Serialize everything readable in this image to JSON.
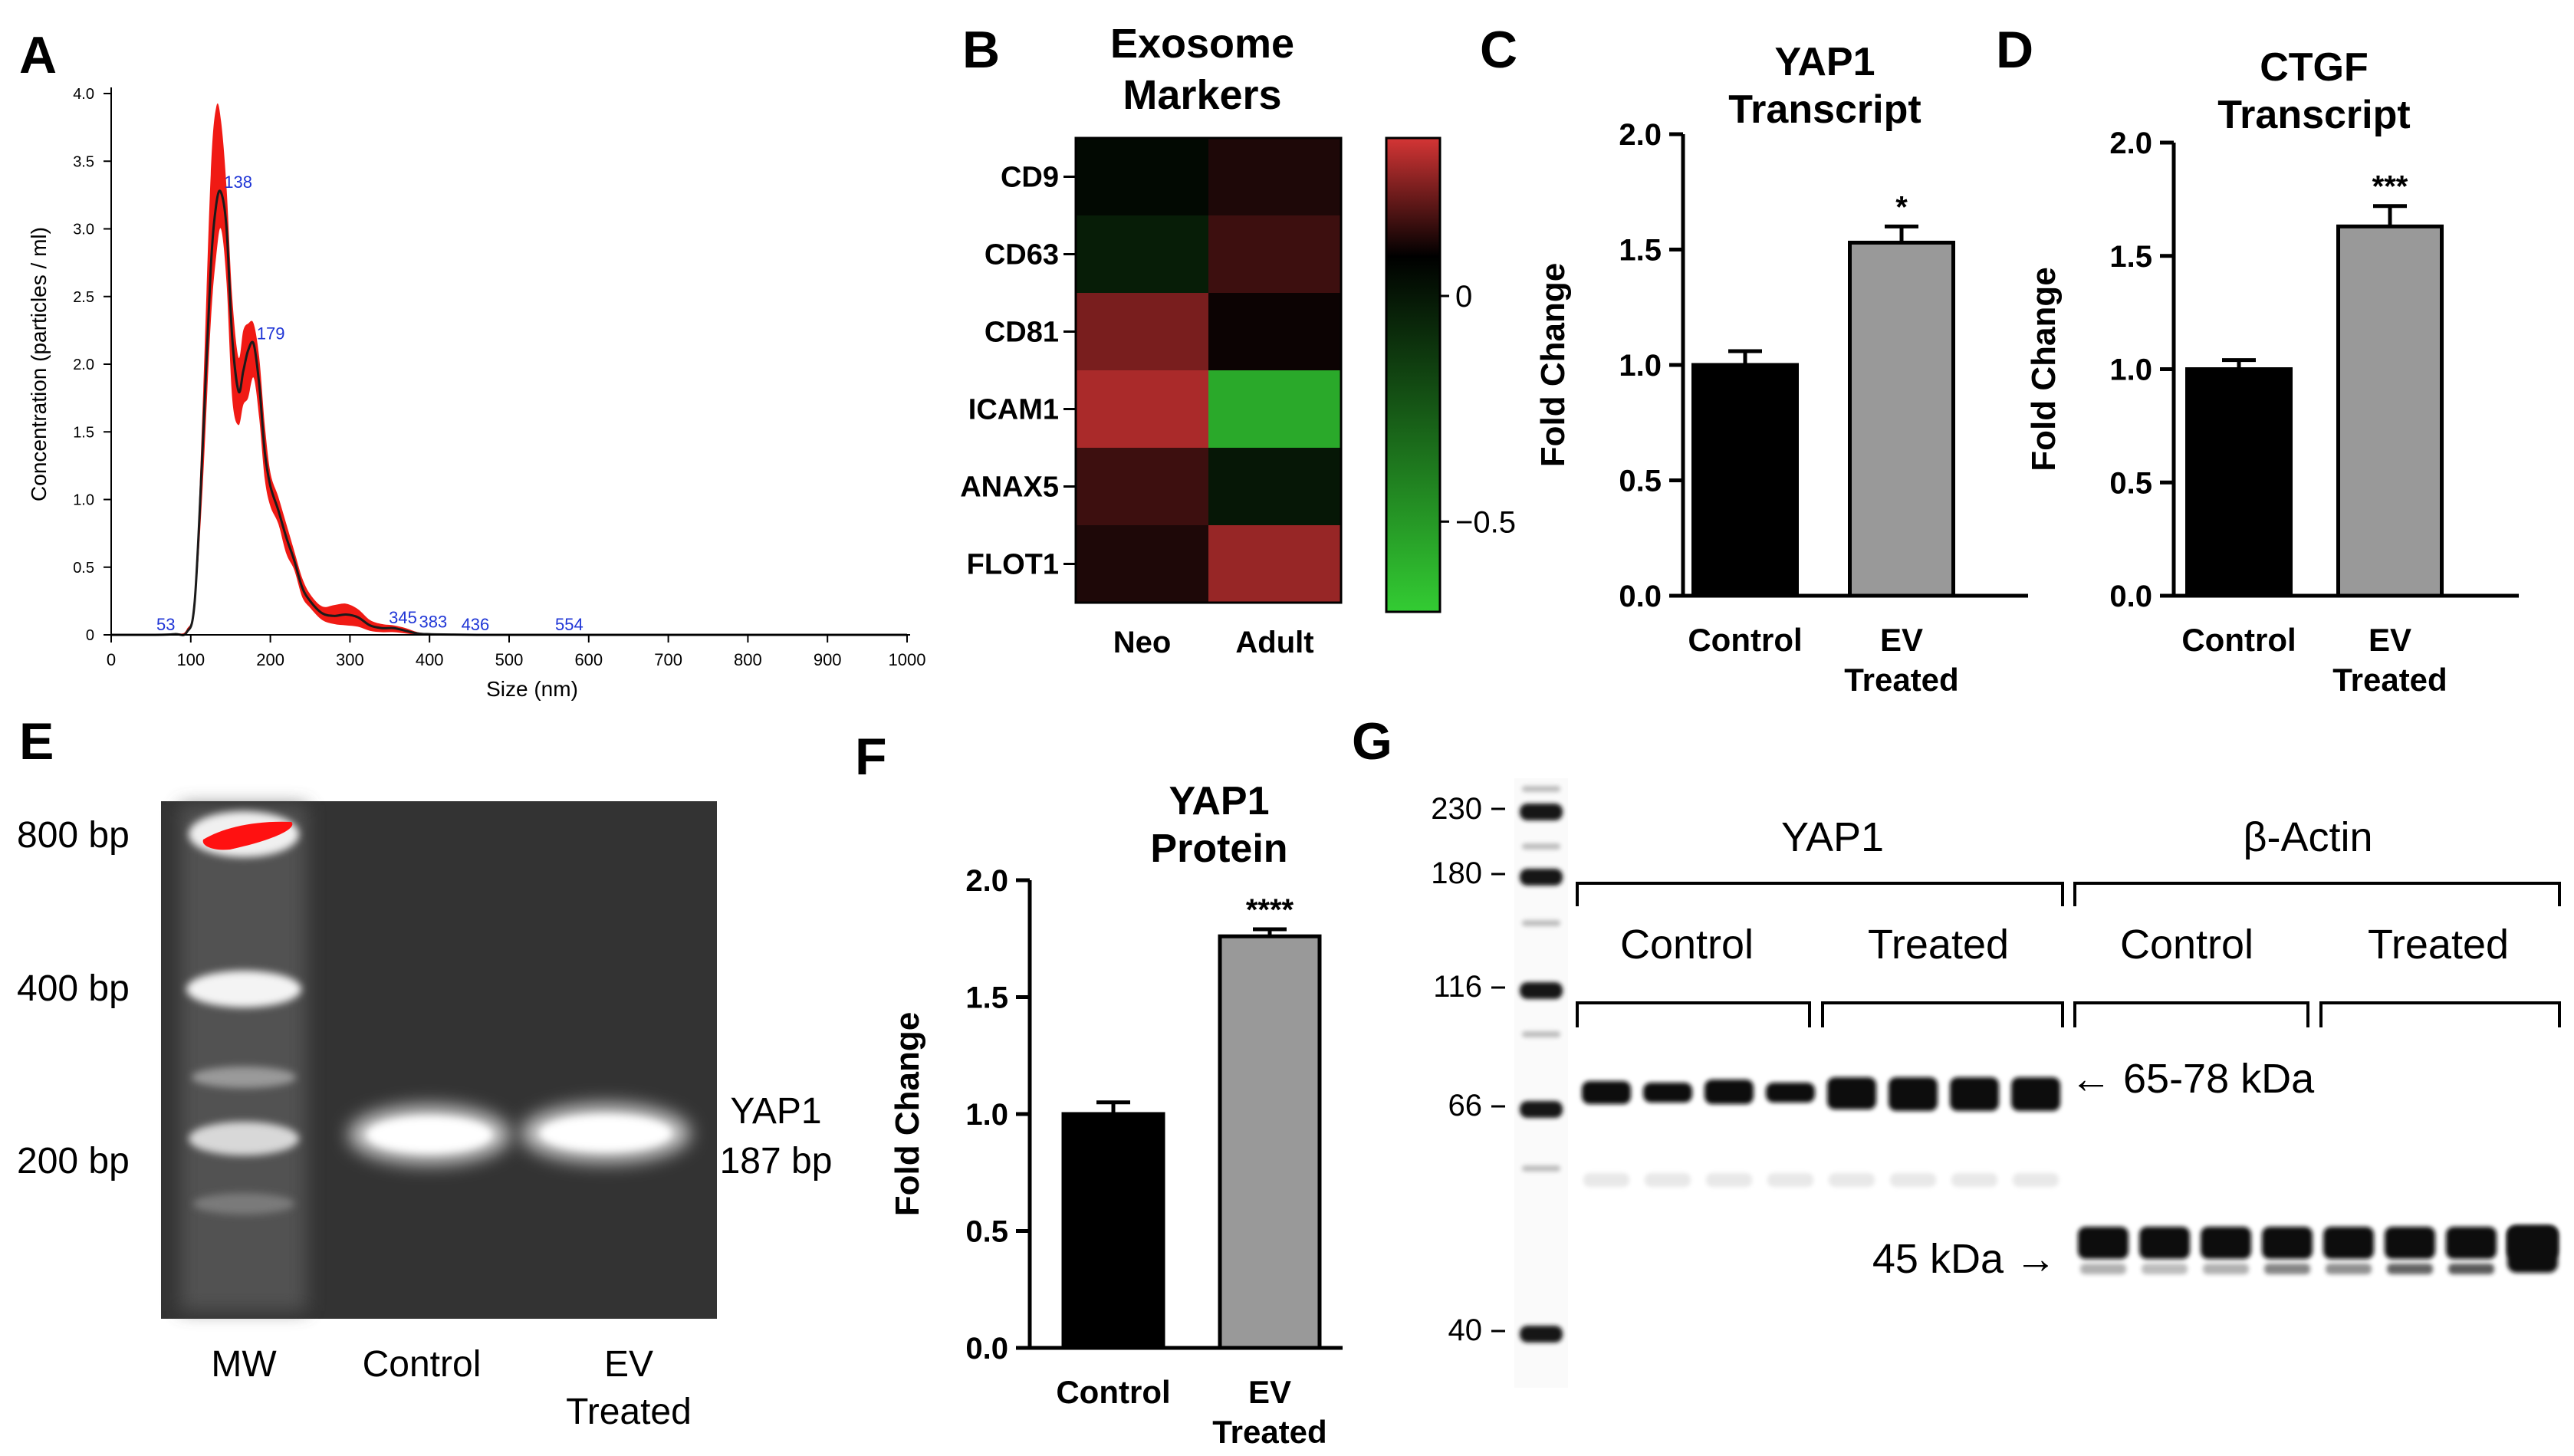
{
  "chart_data": [
    {
      "panel": "A",
      "type": "line",
      "xlabel": "Size (nm)",
      "ylabel": "Concentration (particles / ml)",
      "xlim": [
        0,
        1000
      ],
      "ylim": [
        0,
        4.0
      ],
      "x_ticks": [
        "0",
        "100",
        "200",
        "300",
        "400",
        "500",
        "600",
        "700",
        "800",
        "900",
        "1000"
      ],
      "y_ticks": [
        "0",
        "0.5",
        "1.0",
        "1.5",
        "2.0",
        "2.5",
        "3.0",
        "3.5",
        "4.0"
      ],
      "x": [
        0,
        50,
        80,
        95,
        105,
        115,
        125,
        132,
        138,
        145,
        152,
        160,
        166,
        172,
        179,
        186,
        193,
        200,
        210,
        220,
        230,
        240,
        250,
        265,
        280,
        295,
        310,
        325,
        340,
        355,
        370,
        385,
        400,
        430,
        460,
        500,
        560,
        650,
        1000
      ],
      "y": [
        0,
        0,
        0.005,
        0.02,
        0.25,
        1.4,
        2.7,
        3.18,
        3.27,
        3.0,
        2.2,
        1.8,
        1.95,
        2.1,
        2.15,
        1.85,
        1.35,
        1.1,
        0.92,
        0.72,
        0.55,
        0.35,
        0.25,
        0.16,
        0.14,
        0.15,
        0.13,
        0.07,
        0.05,
        0.05,
        0.03,
        0.01,
        0.005,
        0.002,
        0,
        0,
        0,
        0,
        0
      ],
      "upper": [
        0,
        0,
        0.01,
        0.04,
        0.3,
        1.7,
        3.4,
        3.9,
        3.8,
        3.3,
        2.5,
        2.05,
        2.25,
        2.3,
        2.3,
        2.05,
        1.55,
        1.2,
        1.02,
        0.82,
        0.62,
        0.42,
        0.3,
        0.21,
        0.22,
        0.23,
        0.19,
        0.11,
        0.08,
        0.07,
        0.05,
        0.02,
        0.01,
        0.005,
        0,
        0,
        0,
        0,
        0
      ],
      "lower": [
        0,
        0,
        0,
        0.01,
        0.2,
        1.1,
        2.3,
        2.8,
        3.0,
        2.6,
        1.75,
        1.55,
        1.7,
        1.75,
        1.9,
        1.6,
        1.15,
        0.95,
        0.82,
        0.6,
        0.48,
        0.28,
        0.2,
        0.11,
        0.08,
        0.07,
        0.06,
        0.03,
        0.02,
        0.02,
        0.01,
        0,
        0,
        0,
        0,
        0,
        0,
        0,
        0
      ],
      "peak_labels": [
        {
          "x": 53,
          "y": 0,
          "label": "53"
        },
        {
          "x": 138,
          "y": 3.27,
          "label": "138"
        },
        {
          "x": 179,
          "y": 2.15,
          "label": "179"
        },
        {
          "x": 345,
          "y": 0.05,
          "label": "345"
        },
        {
          "x": 383,
          "y": 0.02,
          "label": "383"
        },
        {
          "x": 436,
          "y": 0,
          "label": "436"
        },
        {
          "x": 554,
          "y": 0,
          "label": "554"
        }
      ],
      "colors": {
        "line": "#1a1a1a",
        "band": "#f01a14",
        "peak_label": "#1f35d6"
      }
    },
    {
      "panel": "B",
      "type": "heatmap",
      "title": "Exosome Markers",
      "rows": [
        "CD9",
        "CD63",
        "CD81",
        "ICAM1",
        "ANAX5",
        "FLOT1"
      ],
      "columns": [
        "Neo",
        "Adult"
      ],
      "values": [
        [
          -0.03,
          0.05
        ],
        [
          -0.1,
          0.1
        ],
        [
          0.2,
          0.02
        ],
        [
          0.28,
          -0.58
        ],
        [
          0.1,
          -0.08
        ],
        [
          0.05,
          0.25
        ]
      ],
      "colorbar_ticks": [
        {
          "value": 0,
          "label": "0"
        },
        {
          "value": -0.5,
          "label": "−0.5"
        }
      ],
      "range": [
        -0.7,
        0.35
      ],
      "colors": {
        "positive": "#d43535",
        "zero": "#000000",
        "negative": "#33cc33"
      }
    },
    {
      "panel": "C",
      "type": "bar",
      "title": [
        "YAP1",
        "Transcript"
      ],
      "ylabel": "Fold Change",
      "ylim": [
        0,
        2.0
      ],
      "y_ticks": [
        "0.0",
        "0.5",
        "1.0",
        "1.5",
        "2.0"
      ],
      "categories": [
        [
          "Control"
        ],
        [
          "EV",
          "Treated"
        ]
      ],
      "values": [
        1.0,
        1.53
      ],
      "errors": [
        0.06,
        0.07
      ],
      "significance": [
        "",
        "*"
      ],
      "colors": [
        "#000000",
        "#999999"
      ]
    },
    {
      "panel": "D",
      "type": "bar",
      "title": [
        "CTGF",
        "Transcript"
      ],
      "ylabel": "Fold Change",
      "ylim": [
        0,
        2.0
      ],
      "y_ticks": [
        "0.0",
        "0.5",
        "1.0",
        "1.5",
        "2.0"
      ],
      "categories": [
        [
          "Control"
        ],
        [
          "EV",
          "Treated"
        ]
      ],
      "values": [
        1.0,
        1.63
      ],
      "errors": [
        0.04,
        0.09
      ],
      "significance": [
        "",
        "***"
      ],
      "colors": [
        "#000000",
        "#999999"
      ]
    },
    {
      "panel": "F",
      "type": "bar",
      "title": [
        "YAP1",
        "Protein"
      ],
      "ylabel": "Fold Change",
      "ylim": [
        0,
        2.0
      ],
      "y_ticks": [
        "0.0",
        "0.5",
        "1.0",
        "1.5",
        "2.0"
      ],
      "categories": [
        [
          "Control"
        ],
        [
          "EV",
          "Treated"
        ]
      ],
      "values": [
        1.0,
        1.76
      ],
      "errors": [
        0.05,
        0.03
      ],
      "significance": [
        "",
        "****"
      ],
      "colors": [
        "#000000",
        "#999999"
      ]
    }
  ],
  "panel_labels": {
    "A": "A",
    "B": "B",
    "C": "C",
    "D": "D",
    "E": "E",
    "F": "F",
    "G": "G"
  },
  "gel_E": {
    "ladder_labels": [
      "800 bp",
      "400 bp",
      "200 bp"
    ],
    "lane_labels": [
      "MW",
      "Control"
    ],
    "lane_label_ev": [
      "EV",
      "Treated"
    ],
    "band_label": [
      "YAP1",
      "187 bp"
    ]
  },
  "blot_G": {
    "mw_markers": [
      "230",
      "180",
      "116",
      "66",
      "40"
    ],
    "group_labels": [
      "YAP1",
      "β-Actin"
    ],
    "subgroup_labels": [
      "Control",
      "Treated",
      "Control",
      "Treated"
    ],
    "band_annotations": [
      "← 65-78 kDa",
      "45 kDa →"
    ]
  }
}
